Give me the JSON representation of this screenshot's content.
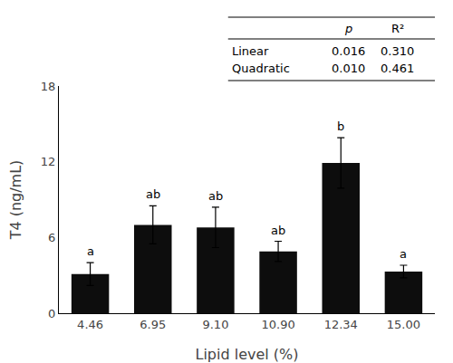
{
  "chart_data": {
    "type": "bar",
    "xlabel": "Lipid level (%)",
    "ylabel": "T4 (ng/mL)",
    "categories": [
      "4.46",
      "6.95",
      "9.10",
      "10.90",
      "12.34",
      "15.00"
    ],
    "values": [
      3.1,
      7.0,
      6.8,
      4.9,
      11.9,
      3.3
    ],
    "errors": [
      0.9,
      1.5,
      1.6,
      0.8,
      2.0,
      0.5
    ],
    "annotations": [
      "a",
      "ab",
      "ab",
      "ab",
      "b",
      "a"
    ],
    "color": "#0d0d0d",
    "ylim": [
      0,
      18
    ],
    "yticks": [
      0,
      6,
      12,
      18
    ],
    "grid": false,
    "table": {
      "columns": [
        "p",
        "R²"
      ],
      "rows": [
        "Linear",
        "Quadratic"
      ],
      "cells": [
        [
          "0.016",
          "0.310"
        ],
        [
          "0.010",
          "0.461"
        ]
      ]
    }
  }
}
